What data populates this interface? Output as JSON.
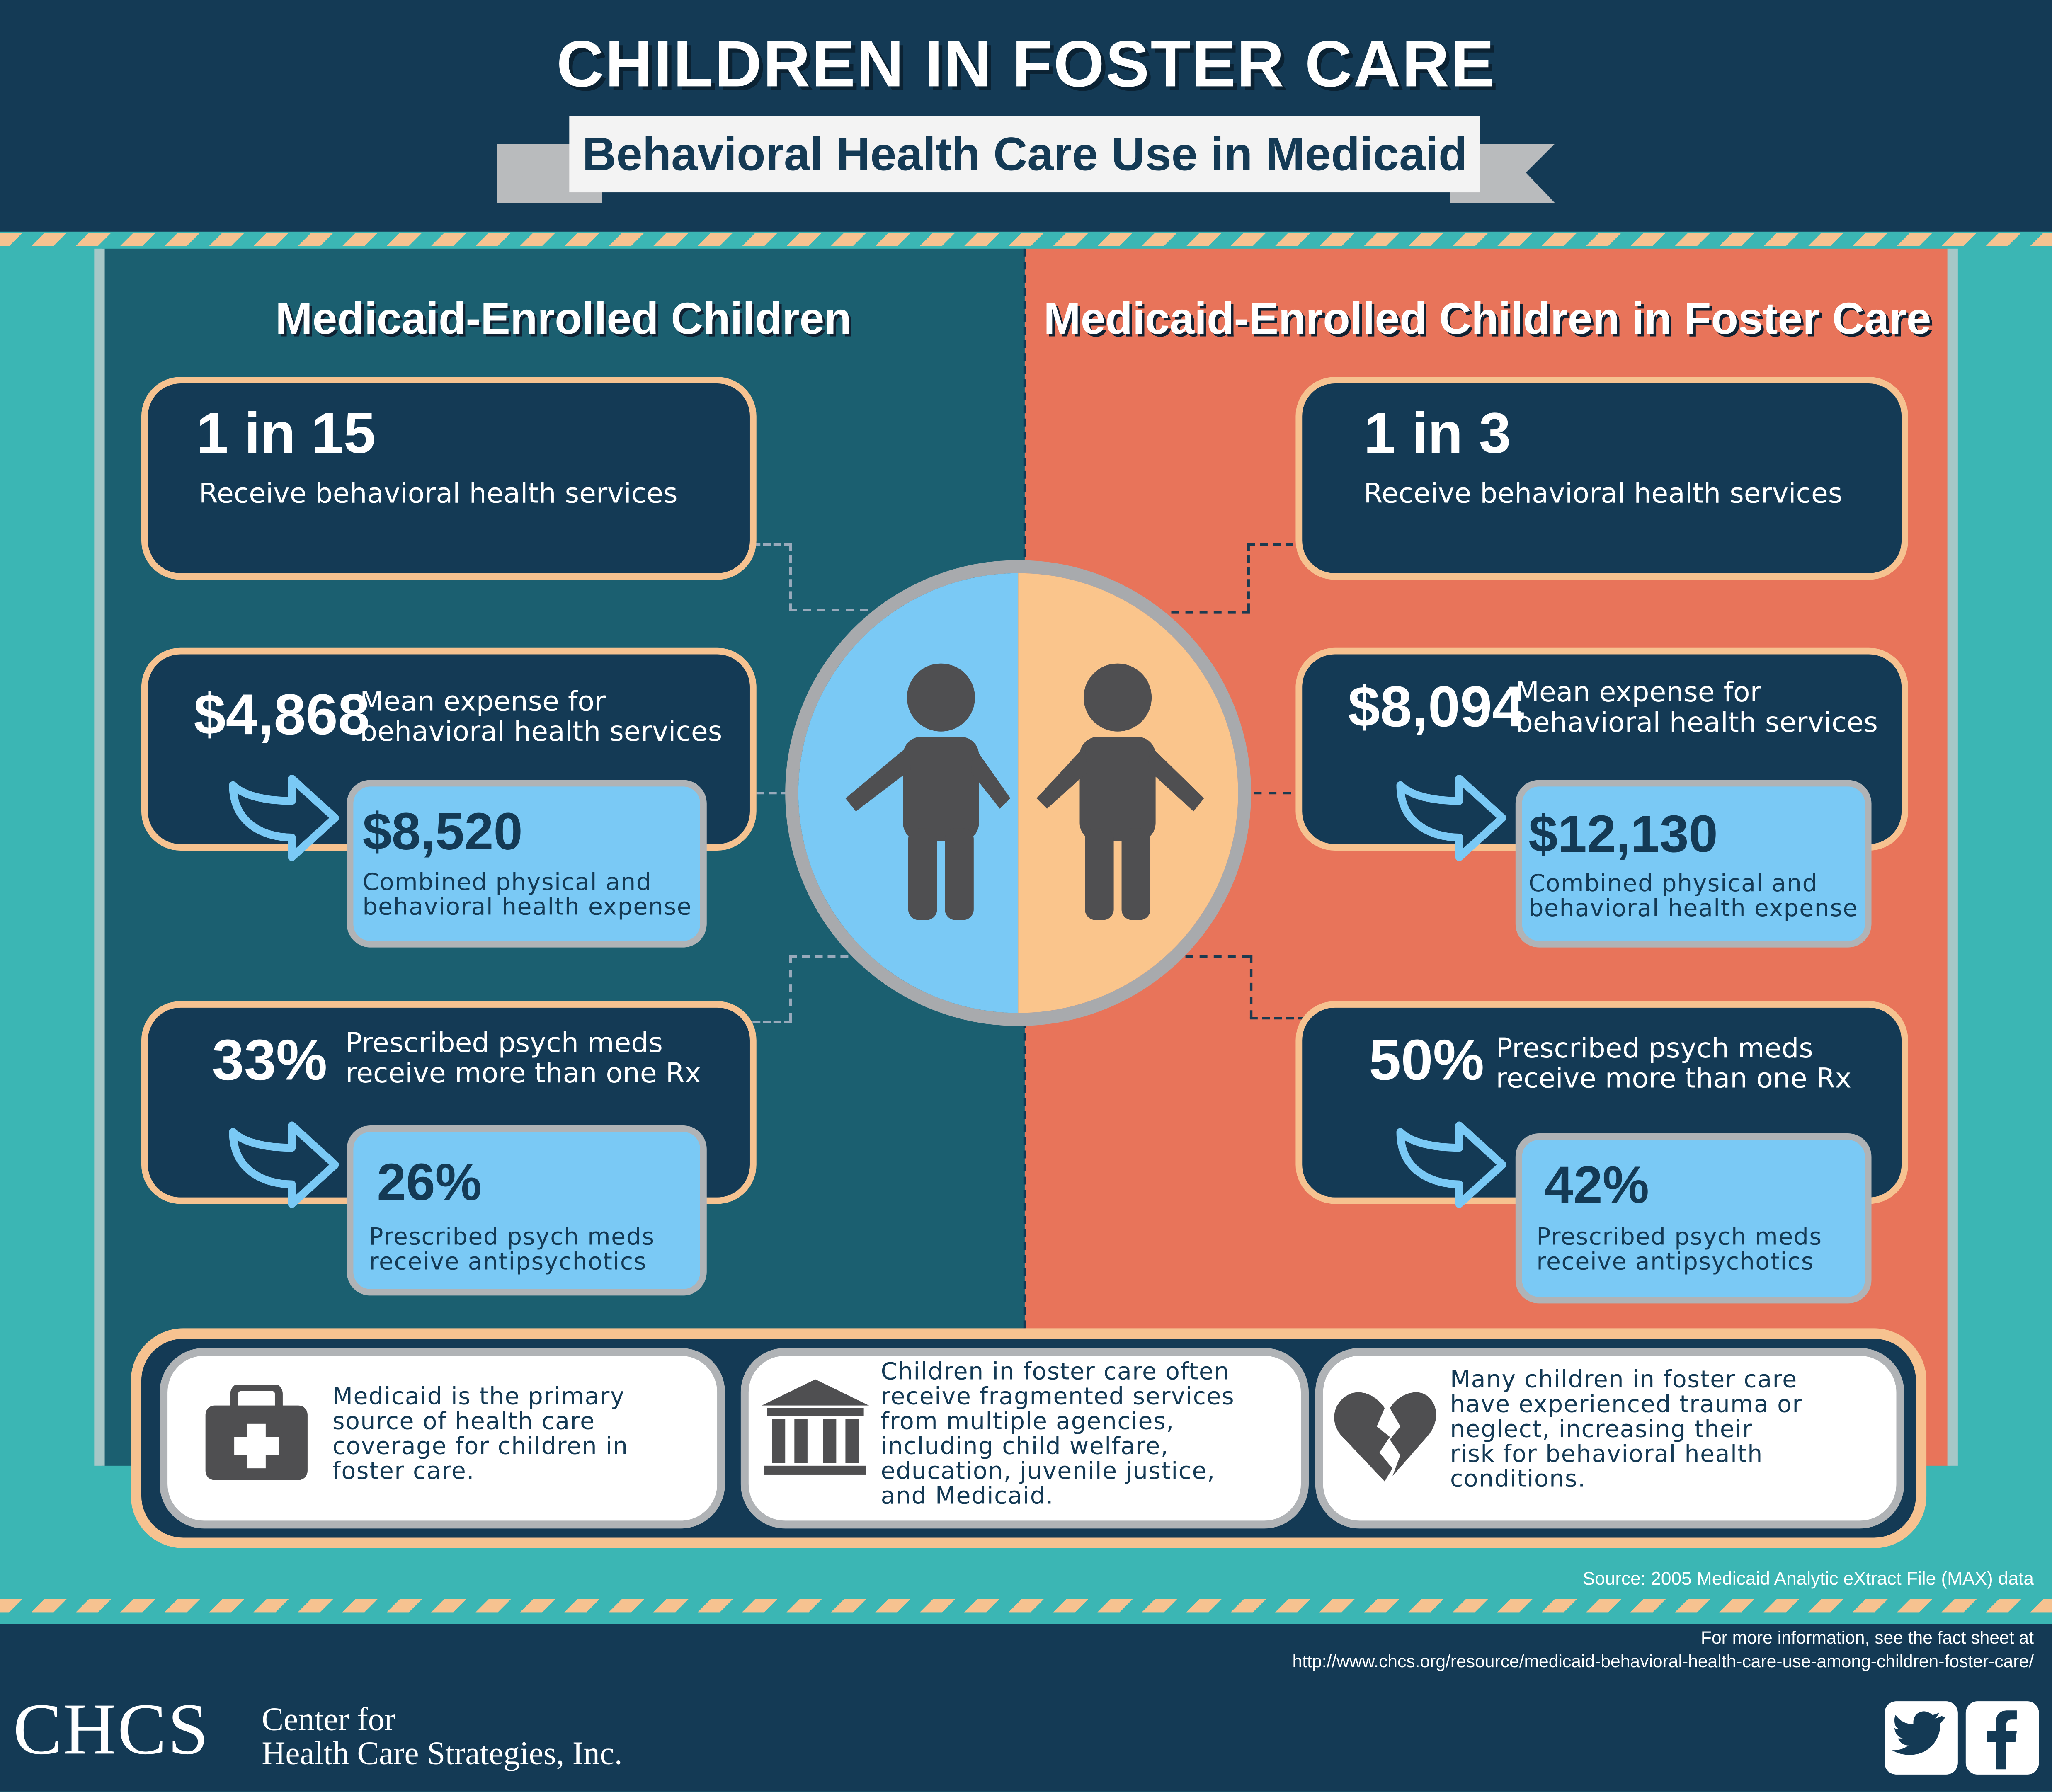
{
  "header": {
    "title": "CHILDREN IN FOSTER CARE",
    "subtitle": "Behavioral Health Care Use in Medicaid"
  },
  "left": {
    "title": "Medicaid-Enrolled Children",
    "stat1": {
      "value": "1 in 15",
      "label": "Receive behavioral health services"
    },
    "stat2": {
      "value": "$4,868",
      "label_line1": "Mean expense for",
      "label_line2": "behavioral health services",
      "sub_value": "$8,520",
      "sub_line1": "Combined physical and",
      "sub_line2": "behavioral health expense"
    },
    "stat3": {
      "value": "33%",
      "label_line1": "Prescribed psych meds",
      "label_line2": "receive more than one Rx",
      "sub_value": "26%",
      "sub_line1": "Prescribed psych meds",
      "sub_line2": "receive antipsychotics"
    }
  },
  "right": {
    "title": "Medicaid-Enrolled Children in Foster Care",
    "stat1": {
      "value": "1 in 3",
      "label": "Receive behavioral health services"
    },
    "stat2": {
      "value": "$8,094",
      "label_line1": "Mean expense for",
      "label_line2": "behavioral health services",
      "sub_value": "$12,130",
      "sub_line1": "Combined physical and",
      "sub_line2": "behavioral health expense"
    },
    "stat3": {
      "value": "50%",
      "label_line1": "Prescribed psych meds",
      "label_line2": "receive more than one Rx",
      "sub_value": "42%",
      "sub_line1": "Prescribed psych meds",
      "sub_line2": "receive antipsychotics"
    }
  },
  "cards": [
    {
      "icon": "medical-kit-icon",
      "lines": [
        "Medicaid is the primary",
        "source of health care",
        "coverage for children in",
        "foster care."
      ]
    },
    {
      "icon": "government-building-icon",
      "lines": [
        "Children in foster care often",
        "receive fragmented services",
        "from multiple agencies,",
        "including child welfare,",
        "education, juvenile justice,",
        "and Medicaid."
      ]
    },
    {
      "icon": "broken-heart-icon",
      "lines": [
        "Many children in foster care",
        "have experienced trauma or",
        "neglect, increasing their",
        "risk for behavioral health",
        "conditions."
      ]
    }
  ],
  "source": "Source: 2005 Medicaid Analytic eXtract File (MAX) data",
  "footer": {
    "info_line1": "For more information, see the fact sheet at",
    "info_line2": "http://www.chcs.org/resource/medicaid-behavioral-health-care-use-among-children-foster-care/",
    "logo": "CHCS",
    "org_line1": "Center for",
    "org_line2": "Health Care Strategies, Inc."
  },
  "colors": {
    "navy": "#143a55",
    "teal": "#1b5f70",
    "coral": "#e8745a",
    "light_blue": "#7ac9f5",
    "peach": "#f6c290",
    "aqua": "#3bb6b4"
  },
  "icons": [
    "arrow-icon",
    "child-icon",
    "twitter-icon",
    "facebook-icon"
  ]
}
